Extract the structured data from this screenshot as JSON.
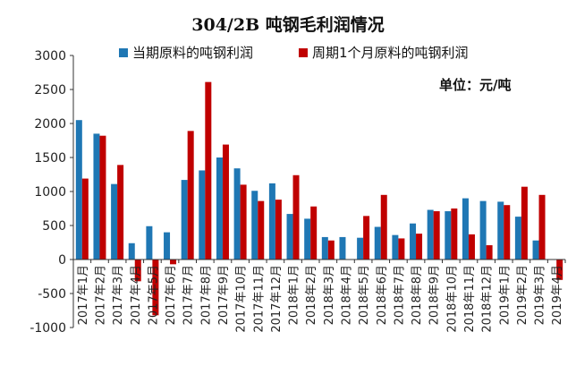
{
  "chart_data": {
    "type": "bar",
    "title": "304/2B 吨钢毛利润情况",
    "unit_label": "单位：元/吨",
    "ylim": [
      -1000,
      3000
    ],
    "yticks": [
      "3000",
      "2500",
      "2000",
      "1500",
      "1000",
      "500",
      "0",
      "-500",
      "-1000"
    ],
    "legend_position": "top",
    "grid": false,
    "categories": [
      "2017年1月",
      "2017年2月",
      "2017年3月",
      "2017年4月",
      "2017年5月",
      "2017年6月",
      "2017年7月",
      "2017年8月",
      "2017年9月",
      "2017年10月",
      "2017年11月",
      "2017年12月",
      "2018年1月",
      "2018年2月",
      "2018年3月",
      "2018年4月",
      "2018年5月",
      "2018年6月",
      "2018年7月",
      "2018年8月",
      "2018年9月",
      "2018年10月",
      "2018年11月",
      "2018年12月",
      "2019年1月",
      "2019年2月",
      "2019年3月",
      "2019年4月"
    ],
    "series": [
      {
        "name": "当期原料的吨钢利润",
        "color": "#1F77B4",
        "values": [
          2050,
          1850,
          1110,
          240,
          490,
          400,
          1170,
          1310,
          1500,
          1340,
          1010,
          1120,
          670,
          600,
          330,
          330,
          320,
          480,
          360,
          530,
          730,
          710,
          900,
          860,
          850,
          630,
          280,
          null
        ]
      },
      {
        "name": "周期1个月原料的吨钢利润",
        "color": "#C00000",
        "values": [
          1190,
          1820,
          1390,
          -320,
          -820,
          -70,
          1890,
          2610,
          1690,
          1100,
          860,
          880,
          1240,
          780,
          280,
          null,
          640,
          950,
          310,
          380,
          710,
          750,
          370,
          210,
          800,
          1070,
          950,
          -300
        ]
      }
    ]
  }
}
